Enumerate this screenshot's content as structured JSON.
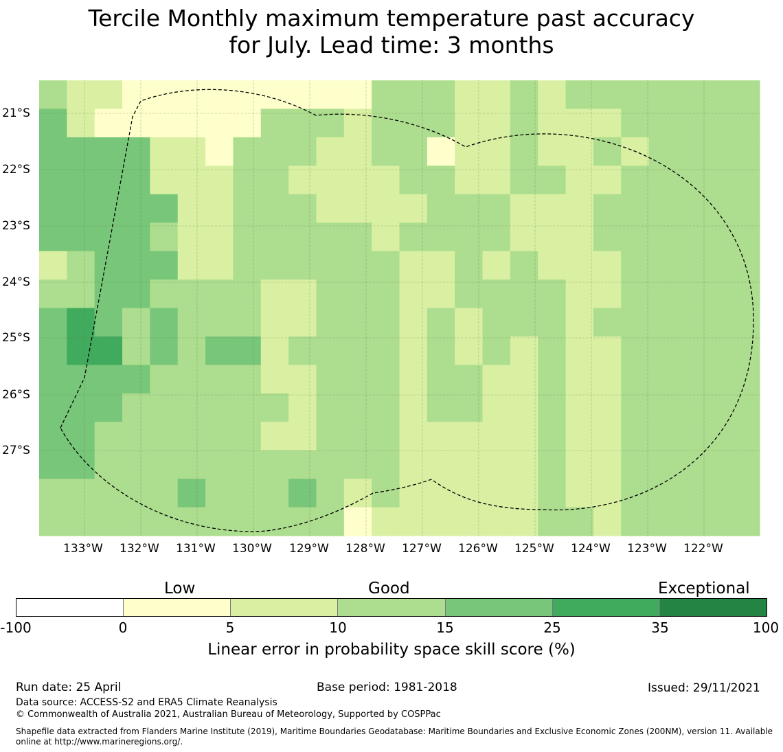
{
  "title": {
    "line1": "Tercile Monthly maximum temperature past accuracy",
    "line2": "for July. Lead time: 3 months"
  },
  "map": {
    "lat_labels": [
      "21°S",
      "22°S",
      "23°S",
      "24°S",
      "25°S",
      "26°S",
      "27°S"
    ],
    "lon_labels": [
      "133°W",
      "132°W",
      "131°W",
      "130°W",
      "129°W",
      "128°W",
      "127°W",
      "126°W",
      "125°W",
      "124°W",
      "123°W",
      "122°W"
    ],
    "lon_range": [
      -133.8,
      -120.9
    ],
    "lat_range": [
      -20.6,
      -28.7
    ],
    "grid_cell_deg": 0.833,
    "boundary_style": "dashed",
    "cell_grid": [
      "3444442344444433",
      "2244443355444433",
      "2144444445443333",
      "1144444433433333",
      "1122434344333333",
      "1122222333333343",
      "1112222334333333",
      "1133333334333333",
      "1333333222232333",
      "1332333223222343",
      "1322233333333333",
      "1222233333333321",
      "3332223333333332",
      "3333232222222222",
      "3313332233332222",
      "2222333322332222",
      "2222332333222222",
      "3333223332222222",
      "2223222333333333",
      "3222222222222223",
      "3232332232222222",
      "3323333333333333",
      "3333333333333333",
      "3333333333333333",
      "3333333333333333",
      "3333333333333333"
    ]
  },
  "colorbar": {
    "category_labels": [
      "Low",
      "Good",
      "Exceptional"
    ],
    "tick_labels": [
      "-100",
      "0",
      "5",
      "10",
      "15",
      "25",
      "35",
      "100"
    ],
    "colors": [
      "#ffffff",
      "#ffffcc",
      "#d9f0a3",
      "#addd8e",
      "#78c679",
      "#41ab5d",
      "#238443"
    ],
    "label": "Linear error in probability space skill score (%)"
  },
  "footer": {
    "run_date": "Run date: 25 April",
    "base_period": "Base period: 1981-2018",
    "issued": "Issued: 29/11/2021",
    "data_source": "Data source: ACCESS-S2 and ERA5 Climate Reanalysis",
    "copyright": "© Commonwealth of Australia 2021, Australian Bureau of Meteorology, Supported by COSPPac",
    "shapefile_line1": "Shapefile data extracted from Flanders Marine Institute (2019), Maritime Boundaries Geodatabase: Maritime Boundaries and Exclusive Economic Zones (200NM), version 11. Available",
    "shapefile_line2": "online at http://www.marineregions.org/."
  }
}
